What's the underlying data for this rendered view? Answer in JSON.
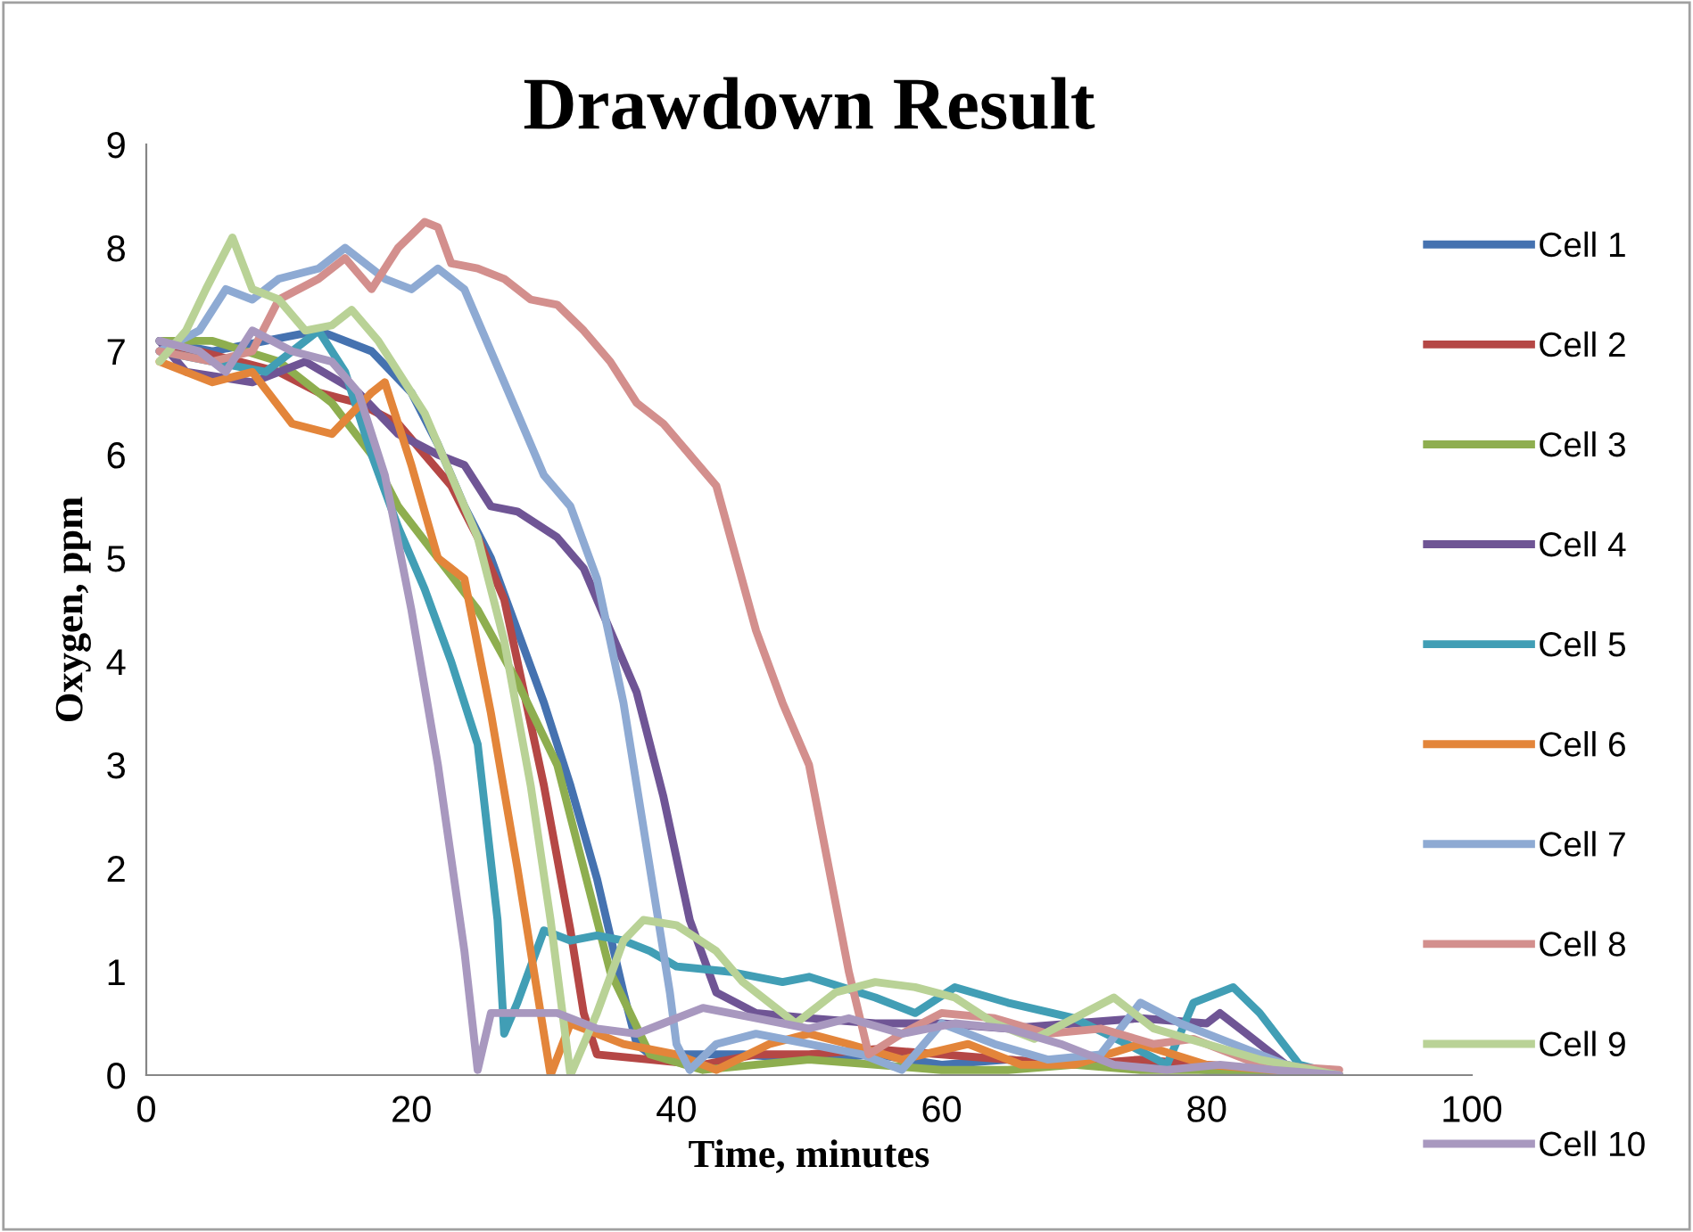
{
  "chart_data": {
    "type": "line",
    "title": "Drawdown Result",
    "xlabel": "Time, minutes",
    "ylabel": "Oxygen, ppm",
    "xlim": [
      0,
      100
    ],
    "xticks": [
      0,
      20,
      40,
      60,
      80,
      100
    ],
    "ylim": [
      0,
      9
    ],
    "yticks": [
      0,
      1,
      2,
      3,
      4,
      5,
      6,
      7,
      8,
      9
    ],
    "grid": false,
    "legend": "right",
    "marker": "none",
    "line_style": "solid",
    "series": [
      {
        "name": "Cell 1",
        "color": "#4572b0",
        "x": [
          1,
          5,
          9,
          13,
          17,
          20,
          22,
          24,
          26,
          28,
          30,
          32,
          34,
          36,
          37,
          38,
          45,
          50,
          55,
          60,
          65,
          70,
          75,
          80,
          85,
          90
        ],
        "values": [
          7.1,
          7.0,
          7.1,
          7.2,
          7.0,
          6.6,
          6.1,
          5.5,
          5.0,
          4.3,
          3.6,
          2.8,
          1.9,
          0.8,
          0.3,
          0.2,
          0.2,
          0.15,
          0.2,
          0.1,
          0.15,
          0.1,
          0.1,
          0.05,
          0.05,
          0.0
        ]
      },
      {
        "name": "Cell 2",
        "color": "#b54745",
        "x": [
          1,
          4,
          7,
          10,
          13,
          16,
          19,
          21,
          23,
          25,
          27,
          28,
          30,
          32,
          33,
          34,
          38,
          42,
          46,
          50,
          55,
          60,
          65,
          70,
          75,
          80,
          85,
          90
        ],
        "values": [
          7.0,
          7.0,
          6.9,
          6.8,
          6.6,
          6.5,
          6.3,
          6.0,
          5.7,
          5.2,
          4.6,
          4.0,
          2.8,
          1.4,
          0.6,
          0.2,
          0.15,
          0.1,
          0.2,
          0.2,
          0.25,
          0.2,
          0.15,
          0.1,
          0.15,
          0.1,
          0.05,
          0.0
        ]
      },
      {
        "name": "Cell 3",
        "color": "#8eae4f",
        "x": [
          1,
          5,
          10,
          14,
          17,
          19,
          22,
          25,
          28,
          31,
          33,
          35,
          38,
          42,
          46,
          50,
          55,
          60,
          65,
          70,
          75,
          80,
          85,
          90
        ],
        "values": [
          7.1,
          7.1,
          6.9,
          6.5,
          6.0,
          5.5,
          5.0,
          4.5,
          3.8,
          3.0,
          2.0,
          1.0,
          0.2,
          0.05,
          0.1,
          0.15,
          0.1,
          0.05,
          0.05,
          0.1,
          0.05,
          0.05,
          0.05,
          0.0
        ]
      },
      {
        "name": "Cell 4",
        "color": "#6f5595",
        "x": [
          1,
          3,
          8,
          12,
          16,
          19,
          22,
          24,
          26,
          28,
          31,
          33,
          35,
          37,
          39,
          41,
          43,
          46,
          50,
          55,
          60,
          65,
          70,
          75,
          80,
          81,
          83,
          86,
          90
        ],
        "values": [
          7.1,
          6.8,
          6.7,
          6.9,
          6.6,
          6.2,
          6.0,
          5.9,
          5.5,
          5.45,
          5.2,
          4.9,
          4.3,
          3.7,
          2.7,
          1.5,
          0.8,
          0.6,
          0.55,
          0.5,
          0.5,
          0.45,
          0.5,
          0.55,
          0.5,
          0.6,
          0.4,
          0.1,
          0.0
        ]
      },
      {
        "name": "Cell 5",
        "color": "#419eb5",
        "x": [
          1,
          5,
          9,
          13,
          15,
          17,
          19,
          21,
          23,
          25,
          26.5,
          27,
          28,
          30,
          32,
          34,
          36,
          38,
          40,
          44,
          48,
          50,
          55,
          58,
          61,
          65,
          70,
          74,
          77,
          79,
          82,
          84,
          87,
          90
        ],
        "values": [
          7.0,
          6.9,
          6.8,
          7.2,
          6.8,
          6.0,
          5.3,
          4.7,
          4.0,
          3.2,
          1.5,
          0.4,
          0.7,
          1.4,
          1.3,
          1.35,
          1.3,
          1.2,
          1.05,
          1.0,
          0.9,
          0.95,
          0.75,
          0.6,
          0.85,
          0.7,
          0.55,
          0.3,
          0.1,
          0.7,
          0.85,
          0.6,
          0.1,
          0.0
        ]
      },
      {
        "name": "Cell 6",
        "color": "#e3853a",
        "x": [
          1,
          5,
          8,
          11,
          14,
          17,
          18,
          20,
          22,
          24,
          26,
          28,
          29.5,
          30.5,
          32,
          34,
          36,
          40,
          43,
          47,
          50,
          53,
          57,
          62,
          66,
          70,
          75,
          80,
          85,
          90
        ],
        "values": [
          6.9,
          6.7,
          6.8,
          6.3,
          6.2,
          6.6,
          6.7,
          5.9,
          5.0,
          4.8,
          3.5,
          2.0,
          0.8,
          0.0,
          0.5,
          0.4,
          0.3,
          0.2,
          0.05,
          0.3,
          0.4,
          0.3,
          0.15,
          0.3,
          0.1,
          0.1,
          0.3,
          0.1,
          0.05,
          0.0
        ]
      },
      {
        "name": "Cell 7",
        "color": "#8eaad3",
        "x": [
          1,
          4,
          6,
          8,
          10,
          13,
          15,
          18,
          20,
          22,
          24,
          26,
          28,
          30,
          32,
          34,
          36,
          38,
          39.5,
          40,
          41,
          43,
          46,
          50,
          54,
          57,
          60,
          64,
          68,
          72,
          75,
          78,
          82,
          86,
          90
        ],
        "values": [
          7.0,
          7.2,
          7.6,
          7.5,
          7.7,
          7.8,
          8.0,
          7.7,
          7.6,
          7.8,
          7.6,
          7.0,
          6.4,
          5.8,
          5.5,
          4.8,
          3.6,
          2.0,
          0.8,
          0.3,
          0.05,
          0.3,
          0.4,
          0.3,
          0.2,
          0.05,
          0.5,
          0.3,
          0.15,
          0.2,
          0.7,
          0.5,
          0.3,
          0.1,
          0.0
        ]
      },
      {
        "name": "Cell 8",
        "color": "#d38f8d",
        "x": [
          1,
          5,
          8,
          10,
          13,
          15,
          17,
          19,
          21,
          22,
          23,
          25,
          27,
          29,
          31,
          33,
          35,
          37,
          39,
          41,
          43,
          44.5,
          46,
          48,
          50,
          51.5,
          53,
          54.5,
          57,
          60,
          64,
          68,
          72,
          76,
          79,
          84,
          90
        ],
        "values": [
          7.0,
          6.9,
          7.0,
          7.5,
          7.7,
          7.9,
          7.6,
          8.0,
          8.25,
          8.2,
          7.85,
          7.8,
          7.7,
          7.5,
          7.45,
          7.2,
          6.9,
          6.5,
          6.3,
          6.0,
          5.7,
          5.0,
          4.3,
          3.6,
          3.0,
          2.0,
          1.0,
          0.2,
          0.4,
          0.6,
          0.55,
          0.4,
          0.45,
          0.3,
          0.35,
          0.1,
          0.05
        ]
      },
      {
        "name": "Cell 9",
        "color": "#b9d296",
        "x": [
          1,
          3,
          4.5,
          6.5,
          8,
          10,
          12,
          14,
          15.5,
          17.5,
          19,
          21,
          23,
          25,
          27,
          29,
          30.5,
          32,
          34,
          36,
          37.5,
          40,
          43,
          45,
          47,
          49,
          52,
          55,
          58,
          61,
          64,
          67,
          70,
          73,
          76,
          80,
          84,
          90
        ],
        "values": [
          6.9,
          7.2,
          7.6,
          8.1,
          7.6,
          7.5,
          7.2,
          7.25,
          7.4,
          7.1,
          6.8,
          6.4,
          5.8,
          5.2,
          4.2,
          2.8,
          1.5,
          0.0,
          0.6,
          1.3,
          1.5,
          1.45,
          1.2,
          0.9,
          0.7,
          0.5,
          0.8,
          0.9,
          0.85,
          0.75,
          0.5,
          0.35,
          0.55,
          0.75,
          0.45,
          0.3,
          0.15,
          0.0
        ]
      },
      {
        "name": "Cell 10",
        "color": "#a898bf",
        "x": [
          1,
          4,
          6,
          8,
          11,
          14,
          16,
          18,
          20,
          22,
          24,
          25,
          26,
          29,
          31,
          34,
          37,
          39,
          42,
          46,
          50,
          53,
          57,
          61,
          65,
          69,
          73,
          77,
          81,
          85,
          90
        ],
        "values": [
          7.1,
          7.0,
          6.8,
          7.2,
          7.0,
          6.9,
          6.6,
          5.8,
          4.5,
          3.0,
          1.2,
          0.05,
          0.6,
          0.6,
          0.6,
          0.45,
          0.4,
          0.5,
          0.65,
          0.55,
          0.45,
          0.55,
          0.4,
          0.5,
          0.45,
          0.3,
          0.1,
          0.05,
          0.1,
          0.05,
          0.0
        ]
      }
    ]
  }
}
